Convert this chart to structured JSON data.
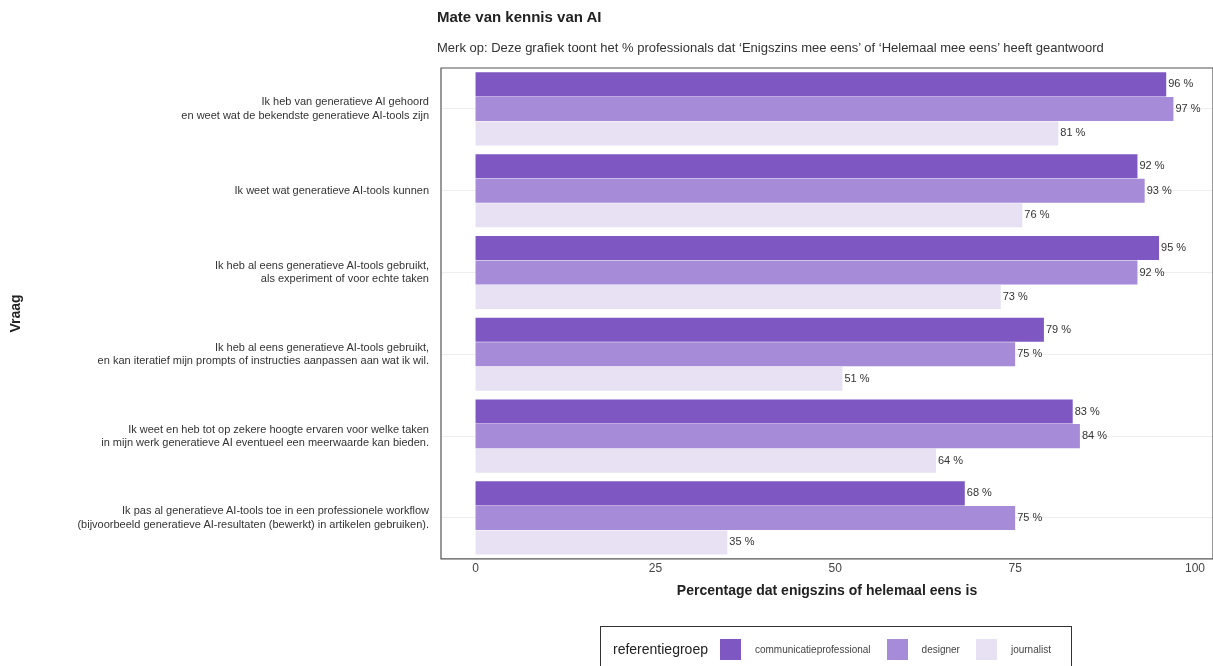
{
  "chart_data": {
    "type": "bar",
    "orientation": "horizontal",
    "title": "Mate van kennis van AI",
    "subtitle": "Merk op: Deze grafiek toont het % professionals dat ‘Enigszins mee eens’ of ‘Helemaal mee eens’ heeft geantwoord",
    "xlabel": "Percentage dat enigszins of helemaal eens is",
    "ylabel": "Vraag",
    "legend_title": "referentiegroep",
    "legend": "bottom",
    "grid": "y",
    "categories": [
      "Ik heb van generatieve AI gehoord\nen weet wat de bekendste generatieve AI-tools zijn",
      "Ik weet wat generatieve AI-tools kunnen",
      "Ik heb al eens generatieve AI-tools gebruikt,\nals experiment of voor echte taken",
      "Ik heb al eens generatieve AI-tools gebruikt,\nen kan iteratief mijn prompts of instructies aanpassen aan wat ik wil.",
      "Ik weet en heb tot op zekere hoogte ervaren voor welke taken\nin mijn werk generatieve AI eventueel een meerwaarde kan bieden.",
      "Ik pas al generatieve AI-tools toe in een professionele workflow\n(bijvoorbeeld generatieve AI-resultaten (bewerkt) in artikelen gebruiken)."
    ],
    "series": [
      {
        "name": "communicatieprofessional",
        "color": "#7e57c2",
        "values": [
          96,
          92,
          95,
          79,
          83,
          68
        ],
        "value_labels": [
          "96 %",
          "92 %",
          "95 %",
          "79 %",
          "83 %",
          "68 %"
        ]
      },
      {
        "name": "designer",
        "color": "#a58bd8",
        "values": [
          97,
          93,
          92,
          75,
          84,
          75
        ],
        "value_labels": [
          "97 %",
          "93 %",
          "92 %",
          "75 %",
          "84 %",
          "75 %"
        ]
      },
      {
        "name": "journalist",
        "color": "#e7e1f3",
        "values": [
          81,
          76,
          73,
          51,
          64,
          35
        ],
        "value_labels": [
          "81 %",
          "76 %",
          "73 %",
          "51 %",
          "64 %",
          "35 %"
        ]
      }
    ],
    "xlim": [
      -4.8,
      102.5
    ],
    "xticks": [
      0,
      25,
      50,
      75,
      100
    ]
  }
}
